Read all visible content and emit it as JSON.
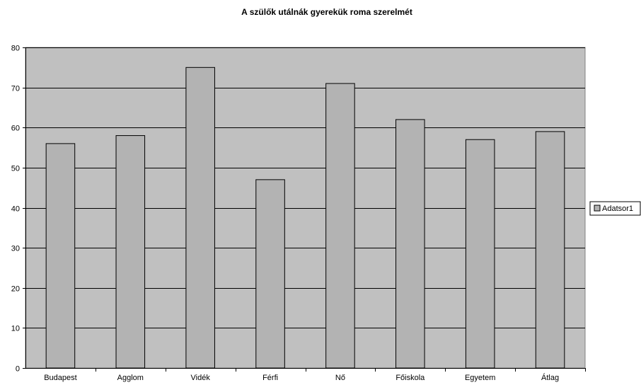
{
  "chart_data": {
    "type": "bar",
    "title": "A szülők utálnák gyerekük roma szerelmét",
    "categories": [
      "Budapest",
      "Agglom",
      "Vidék",
      "Férfi",
      "Nő",
      "Főiskola",
      "Egyetem",
      "Átlag"
    ],
    "series": [
      {
        "name": "Adatsor1",
        "values": [
          56,
          58,
          75,
          47,
          71,
          62,
          57,
          59
        ],
        "color": "#b3b3b3"
      }
    ],
    "y_ticks": [
      "0",
      "10",
      "20",
      "30",
      "40",
      "50",
      "60",
      "70",
      "80"
    ],
    "ylim": [
      0,
      80
    ],
    "grid": true,
    "legend_position": "right",
    "plot_background": "#c0c0c0",
    "bar_stroke": "#000000"
  }
}
